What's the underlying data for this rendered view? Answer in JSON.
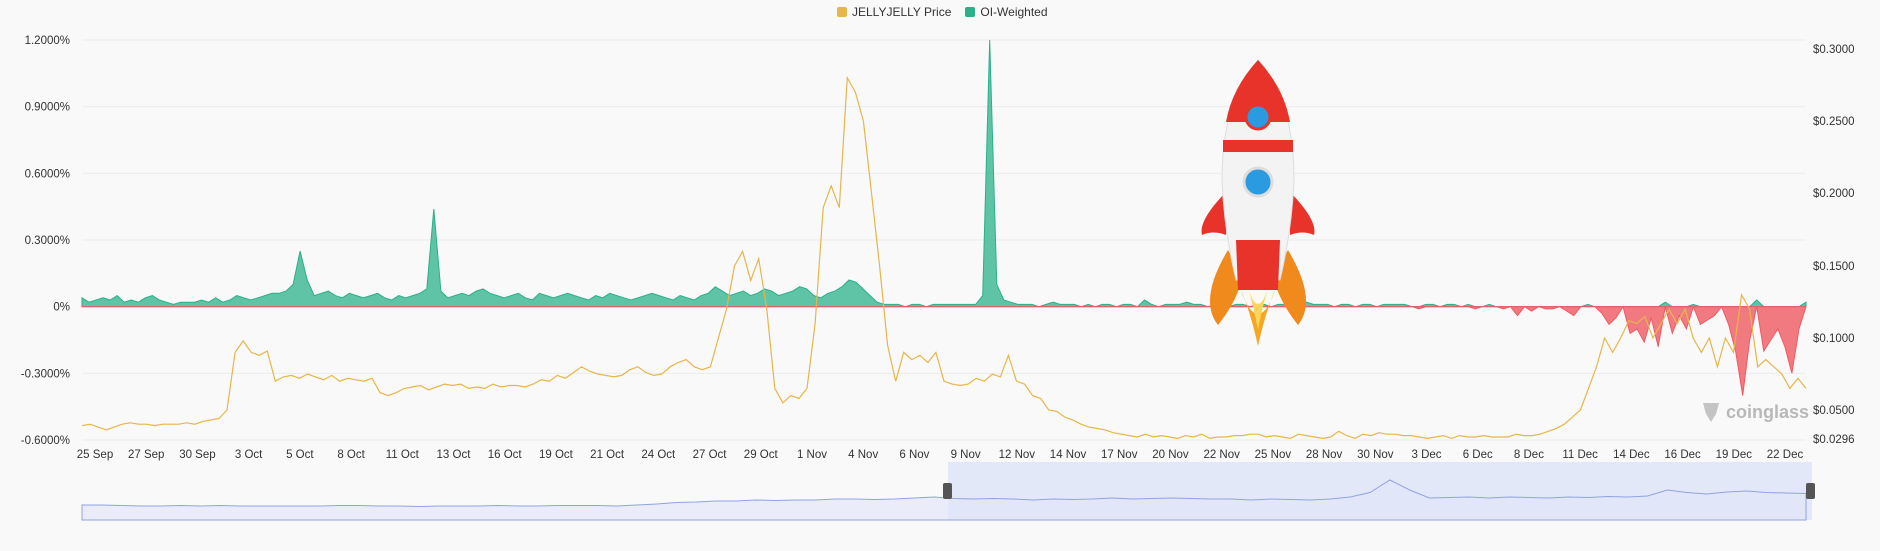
{
  "legend": {
    "price_label": "JELLYJELLY Price",
    "oi_label": "OI-Weighted"
  },
  "watermark": "coinglass",
  "colors": {
    "price": "#e8b54a",
    "oi_positive": "#2bb08a",
    "oi_negative": "#ef5a63",
    "navigator_fill": "#dfe5f8",
    "navigator_line": "#8ea4e2"
  },
  "chart_data": {
    "type": "area",
    "y_left": {
      "min": -0.6,
      "max": 1.2,
      "ticks": [
        "1.2000%",
        "0.9000%",
        "0.6000%",
        "0.3000%",
        "0%",
        "-0.3000%",
        "-0.6000%"
      ]
    },
    "y_right": {
      "ticks": [
        "$0.3000",
        "$0.2500",
        "$0.2000",
        "$0.1500",
        "$0.1000",
        "$0.0500",
        "$0.0296"
      ]
    },
    "x_ticks": [
      "25 Sep",
      "27 Sep",
      "30 Sep",
      "3 Oct",
      "5 Oct",
      "8 Oct",
      "11 Oct",
      "13 Oct",
      "16 Oct",
      "19 Oct",
      "21 Oct",
      "24 Oct",
      "27 Oct",
      "29 Oct",
      "1 Nov",
      "4 Nov",
      "6 Nov",
      "9 Nov",
      "12 Nov",
      "14 Nov",
      "17 Nov",
      "20 Nov",
      "22 Nov",
      "25 Nov",
      "28 Nov",
      "30 Nov",
      "3 Dec",
      "6 Dec",
      "8 Dec",
      "11 Dec",
      "14 Dec",
      "16 Dec",
      "19 Dec",
      "22 Dec"
    ],
    "series": [
      {
        "name": "OI-Weighted",
        "values": [
          0.04,
          0.02,
          0.03,
          0.04,
          0.03,
          0.05,
          0.02,
          0.03,
          0.02,
          0.04,
          0.05,
          0.03,
          0.02,
          0.01,
          0.02,
          0.02,
          0.02,
          0.03,
          0.02,
          0.04,
          0.02,
          0.03,
          0.05,
          0.04,
          0.03,
          0.04,
          0.05,
          0.06,
          0.06,
          0.07,
          0.1,
          0.25,
          0.12,
          0.05,
          0.06,
          0.07,
          0.05,
          0.04,
          0.06,
          0.05,
          0.04,
          0.05,
          0.06,
          0.04,
          0.03,
          0.05,
          0.04,
          0.05,
          0.06,
          0.08,
          0.44,
          0.07,
          0.04,
          0.05,
          0.06,
          0.05,
          0.07,
          0.08,
          0.06,
          0.05,
          0.04,
          0.05,
          0.06,
          0.04,
          0.03,
          0.06,
          0.05,
          0.04,
          0.05,
          0.06,
          0.05,
          0.04,
          0.03,
          0.05,
          0.04,
          0.06,
          0.05,
          0.04,
          0.03,
          0.04,
          0.05,
          0.06,
          0.05,
          0.04,
          0.03,
          0.05,
          0.04,
          0.03,
          0.05,
          0.06,
          0.09,
          0.07,
          0.05,
          0.06,
          0.07,
          0.05,
          0.06,
          0.08,
          0.07,
          0.05,
          0.06,
          0.07,
          0.09,
          0.08,
          0.05,
          0.04,
          0.06,
          0.07,
          0.09,
          0.12,
          0.11,
          0.08,
          0.05,
          0.02,
          0.01,
          0.01,
          0.01,
          0.0,
          0.01,
          0.01,
          0.0,
          0.01,
          0.01,
          0.01,
          0.01,
          0.01,
          0.01,
          0.01,
          0.05,
          1.2,
          0.1,
          0.03,
          0.02,
          0.01,
          0.01,
          0.01,
          0.0,
          0.01,
          0.02,
          0.01,
          0.01,
          0.01,
          0.0,
          0.01,
          0.0,
          0.01,
          0.01,
          0.0,
          0.01,
          0.01,
          0.0,
          0.03,
          0.01,
          0.0,
          0.01,
          0.01,
          0.01,
          0.02,
          0.01,
          0.01,
          0.0,
          0.01,
          0.01,
          0.0,
          0.01,
          0.01,
          0.0,
          0.01,
          0.01,
          0.0,
          0.01,
          0.01,
          0.0,
          0.01,
          0.02,
          0.01,
          0.01,
          0.01,
          0.0,
          0.01,
          0.01,
          0.0,
          0.01,
          0.01,
          0.0,
          0.01,
          0.01,
          0.01,
          0.01,
          0.0,
          -0.01,
          0.01,
          0.01,
          0.0,
          0.01,
          0.01,
          0.0,
          0.01,
          -0.01,
          0.0,
          0.01,
          0.0,
          -0.01,
          0.0,
          -0.04,
          0.0,
          -0.02,
          0.0,
          -0.01,
          -0.01,
          0.0,
          -0.02,
          -0.04,
          0.0,
          0.01,
          0.0,
          -0.03,
          -0.08,
          -0.05,
          0.0,
          -0.12,
          -0.1,
          -0.16,
          -0.05,
          -0.18,
          0.02,
          -0.12,
          -0.04,
          -0.1,
          0.01,
          -0.08,
          -0.06,
          -0.04,
          0.0,
          -0.08,
          -0.2,
          -0.4,
          -0.15,
          0.03,
          -0.2,
          -0.15,
          -0.1,
          -0.18,
          -0.3,
          -0.1,
          0.02
        ]
      },
      {
        "name": "JELLYJELLY Price",
        "values": [
          0.039,
          0.04,
          0.038,
          0.036,
          0.038,
          0.04,
          0.041,
          0.04,
          0.04,
          0.039,
          0.04,
          0.04,
          0.04,
          0.041,
          0.04,
          0.042,
          0.043,
          0.044,
          0.05,
          0.09,
          0.098,
          0.09,
          0.088,
          0.091,
          0.07,
          0.073,
          0.074,
          0.072,
          0.075,
          0.073,
          0.071,
          0.074,
          0.07,
          0.072,
          0.071,
          0.07,
          0.072,
          0.062,
          0.06,
          0.062,
          0.065,
          0.066,
          0.067,
          0.064,
          0.066,
          0.068,
          0.067,
          0.068,
          0.065,
          0.066,
          0.065,
          0.068,
          0.066,
          0.067,
          0.067,
          0.066,
          0.068,
          0.071,
          0.07,
          0.074,
          0.072,
          0.076,
          0.08,
          0.077,
          0.075,
          0.074,
          0.073,
          0.074,
          0.078,
          0.08,
          0.076,
          0.074,
          0.075,
          0.08,
          0.083,
          0.085,
          0.08,
          0.078,
          0.08,
          0.1,
          0.12,
          0.15,
          0.16,
          0.14,
          0.155,
          0.12,
          0.065,
          0.055,
          0.06,
          0.058,
          0.065,
          0.11,
          0.19,
          0.205,
          0.19,
          0.28,
          0.27,
          0.25,
          0.2,
          0.15,
          0.095,
          0.07,
          0.09,
          0.085,
          0.088,
          0.083,
          0.09,
          0.07,
          0.068,
          0.067,
          0.068,
          0.072,
          0.07,
          0.075,
          0.073,
          0.088,
          0.07,
          0.068,
          0.06,
          0.058,
          0.05,
          0.049,
          0.045,
          0.043,
          0.04,
          0.038,
          0.037,
          0.036,
          0.034,
          0.033,
          0.032,
          0.031,
          0.033,
          0.031,
          0.032,
          0.031,
          0.03,
          0.032,
          0.031,
          0.033,
          0.03,
          0.031,
          0.031,
          0.032,
          0.032,
          0.033,
          0.033,
          0.031,
          0.032,
          0.031,
          0.03,
          0.033,
          0.032,
          0.031,
          0.03,
          0.031,
          0.035,
          0.032,
          0.03,
          0.033,
          0.032,
          0.034,
          0.033,
          0.033,
          0.032,
          0.032,
          0.031,
          0.03,
          0.031,
          0.032,
          0.03,
          0.032,
          0.031,
          0.031,
          0.032,
          0.031,
          0.031,
          0.031,
          0.033,
          0.032,
          0.032,
          0.033,
          0.035,
          0.037,
          0.04,
          0.045,
          0.05,
          0.065,
          0.08,
          0.1,
          0.09,
          0.1,
          0.112,
          0.11,
          0.115,
          0.1,
          0.11,
          0.12,
          0.11,
          0.12,
          0.1,
          0.09,
          0.1,
          0.08,
          0.1,
          0.09,
          0.13,
          0.12,
          0.08,
          0.085,
          0.08,
          0.075,
          0.065,
          0.072,
          0.065
        ]
      }
    ]
  },
  "navigator": {
    "values": [
      0.3,
      0.3,
      0.29,
      0.28,
      0.28,
      0.29,
      0.28,
      0.29,
      0.28,
      0.28,
      0.28,
      0.28,
      0.28,
      0.29,
      0.29,
      0.28,
      0.28,
      0.27,
      0.28,
      0.28,
      0.28,
      0.29,
      0.28,
      0.28,
      0.29,
      0.29,
      0.29,
      0.28,
      0.3,
      0.32,
      0.35,
      0.36,
      0.38,
      0.38,
      0.4,
      0.39,
      0.4,
      0.4,
      0.42,
      0.42,
      0.41,
      0.42,
      0.44,
      0.46,
      0.43,
      0.42,
      0.43,
      0.42,
      0.4,
      0.42,
      0.41,
      0.42,
      0.44,
      0.42,
      0.43,
      0.44,
      0.43,
      0.42,
      0.42,
      0.4,
      0.42,
      0.41,
      0.4,
      0.42,
      0.46,
      0.55,
      0.8,
      0.6,
      0.44,
      0.45,
      0.46,
      0.44,
      0.46,
      0.45,
      0.44,
      0.46,
      0.45,
      0.47,
      0.46,
      0.48,
      0.6,
      0.55,
      0.52,
      0.56,
      0.58,
      0.55,
      0.54,
      0.53
    ]
  }
}
